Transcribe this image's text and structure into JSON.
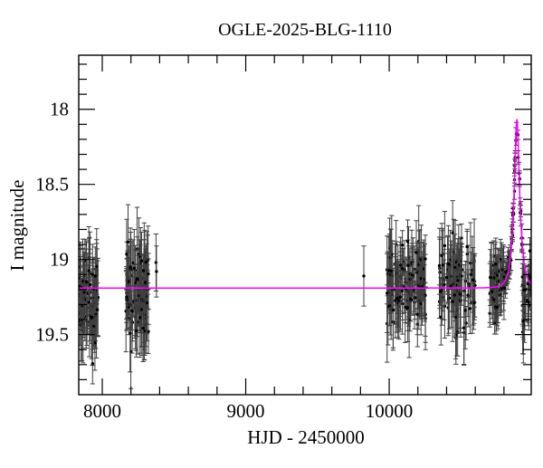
{
  "figure": {
    "title": "OGLE-2025-BLG-1110",
    "background": "#ffffff"
  },
  "chart_data": {
    "type": "scatter",
    "title": "OGLE-2025-BLG-1110",
    "xlabel": "HJD - 2450000",
    "ylabel": "I magnitude",
    "grid": false,
    "legend": false,
    "x_axis": {
      "min": 7836,
      "max": 10990,
      "ticks_major": [
        8000,
        9000,
        10000
      ],
      "tick_labels": [
        "8000",
        "9000",
        "10000"
      ],
      "minor_step": 200
    },
    "y_axis": {
      "min": 17.64,
      "max": 19.9,
      "inverted": true,
      "ticks_major": [
        18,
        18.5,
        19,
        19.5
      ],
      "tick_labels": [
        "18",
        "18.5",
        "19",
        "19.5"
      ],
      "minor_step": 0.1
    },
    "colors": {
      "points": "#000000",
      "error_bars": "#3f3f3f",
      "model_curve": "#ff00ff",
      "frame": "#000000",
      "background": "#ffffff"
    },
    "model_curve": {
      "model": "point-lens-microlensing-paczynski",
      "baseline_mag": 19.19,
      "peak_mag": 18.07,
      "t0": 10890,
      "tE": 38,
      "u0": 0.375
    },
    "data_clusters": [
      {
        "name": "season-1",
        "t_min": 7845,
        "t_max": 7972,
        "n": 80,
        "mag_mean": 19.25,
        "mag_sd": 0.12,
        "err_min": 0.1,
        "err_max": 0.3,
        "follow_model": false
      },
      {
        "name": "season-2",
        "t_min": 8165,
        "t_max": 8322,
        "n": 100,
        "mag_mean": 19.17,
        "mag_sd": 0.15,
        "err_min": 0.09,
        "err_max": 0.28,
        "follow_model": false
      },
      {
        "name": "season-3",
        "t_min": 9985,
        "t_max": 10255,
        "n": 120,
        "mag_mean": 19.16,
        "mag_sd": 0.13,
        "err_min": 0.09,
        "err_max": 0.28,
        "follow_model": false
      },
      {
        "name": "season-4",
        "t_min": 10347,
        "t_max": 10598,
        "n": 90,
        "mag_mean": 19.16,
        "mag_sd": 0.14,
        "err_min": 0.09,
        "err_max": 0.28,
        "follow_model": false
      },
      {
        "name": "event-pre-rise",
        "t_min": 10700,
        "t_max": 10800,
        "n": 55,
        "mag_sd": 0.11,
        "err_min": 0.07,
        "err_max": 0.22,
        "follow_model": true
      },
      {
        "name": "event-rise",
        "t_min": 10802,
        "t_max": 10888,
        "n": 42,
        "mag_sd": 0.035,
        "err_min": 0.03,
        "err_max": 0.09,
        "follow_model": true
      },
      {
        "name": "event-fall",
        "t_min": 10892,
        "t_max": 10928,
        "n": 13,
        "mag_sd": 0.04,
        "err_min": 0.03,
        "err_max": 0.1,
        "follow_model": true
      },
      {
        "name": "post-peak",
        "t_min": 10928,
        "t_max": 10984,
        "n": 30,
        "mag_mean": 19.2,
        "mag_sd": 0.13,
        "err_min": 0.08,
        "err_max": 0.24,
        "follow_model": false
      }
    ],
    "isolated_points": [
      {
        "t": 8375,
        "mag": 19.02,
        "err": 0.19
      },
      {
        "t": 8378,
        "mag": 19.08,
        "err": 0.17
      },
      {
        "t": 9823,
        "mag": 19.11,
        "err": 0.2
      }
    ]
  }
}
